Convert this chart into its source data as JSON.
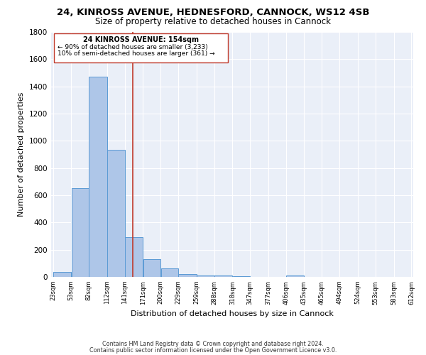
{
  "title1": "24, KINROSS AVENUE, HEDNESFORD, CANNOCK, WS12 4SB",
  "title2": "Size of property relative to detached houses in Cannock",
  "xlabel": "Distribution of detached houses by size in Cannock",
  "ylabel": "Number of detached properties",
  "footnote1": "Contains HM Land Registry data © Crown copyright and database right 2024.",
  "footnote2": "Contains public sector information licensed under the Open Government Licence v3.0.",
  "annotation_line1": "24 KINROSS AVENUE: 154sqm",
  "annotation_line2": "← 90% of detached houses are smaller (3,233)",
  "annotation_line3": "10% of semi-detached houses are larger (361) →",
  "bar_edges": [
    23,
    53,
    82,
    112,
    141,
    171,
    200,
    229,
    259,
    288,
    318,
    347,
    377,
    406,
    435,
    465,
    494,
    524,
    553,
    583,
    612
  ],
  "bar_heights": [
    38,
    652,
    1473,
    935,
    291,
    128,
    62,
    22,
    8,
    10,
    4,
    0,
    0,
    12,
    0,
    0,
    0,
    0,
    0,
    0
  ],
  "bar_color": "#aec6e8",
  "bar_edgecolor": "#5b9bd5",
  "bg_color": "#eaeff8",
  "vline_x": 154,
  "vline_color": "#c0392b",
  "ylim": [
    0,
    1800
  ],
  "yticks": [
    0,
    200,
    400,
    600,
    800,
    1000,
    1200,
    1400,
    1600,
    1800
  ],
  "annotation_box_color": "#c0392b",
  "title1_fontsize": 9.5,
  "title2_fontsize": 8.5,
  "xlabel_fontsize": 8,
  "ylabel_fontsize": 8
}
